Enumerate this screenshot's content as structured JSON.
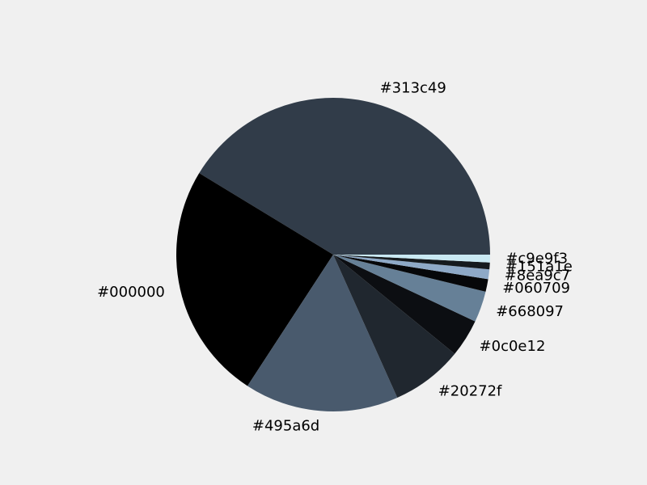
{
  "chart_data": {
    "type": "pie",
    "title": "",
    "start_angle_deg": 0,
    "direction": "counterclockwise",
    "slices": [
      {
        "label": "#313c49",
        "value": 41.3,
        "color": "#313c49"
      },
      {
        "label": "#000000",
        "value": 24.5,
        "color": "#000000"
      },
      {
        "label": "#495a6d",
        "value": 15.9,
        "color": "#495a6d"
      },
      {
        "label": "#20272f",
        "value": 7.4,
        "color": "#20272f"
      },
      {
        "label": "#0c0e12",
        "value": 3.9,
        "color": "#0c0e12"
      },
      {
        "label": "#668097",
        "value": 3.2,
        "color": "#668097"
      },
      {
        "label": "#060709",
        "value": 1.3,
        "color": "#060709"
      },
      {
        "label": "#8ea9c7",
        "value": 1.0,
        "color": "#8ea9c7"
      },
      {
        "label": "#151a1e",
        "value": 0.7,
        "color": "#151a1e"
      },
      {
        "label": "#c9e9f3",
        "value": 0.8,
        "color": "#c9e9f3"
      }
    ]
  }
}
